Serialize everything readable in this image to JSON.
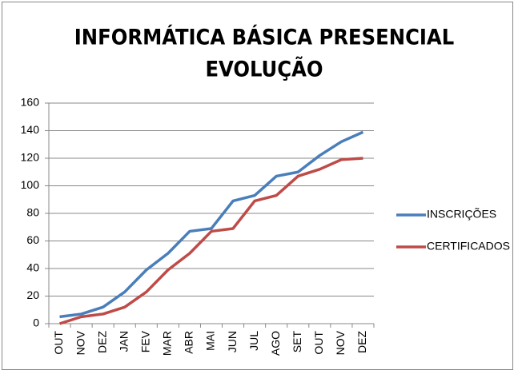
{
  "chart_data": {
    "type": "line",
    "title": [
      "INFORMÁTICA BÁSICA PRESENCIAL",
      "EVOLUÇÃO"
    ],
    "categories": [
      "OUT",
      "NOV",
      "DEZ",
      "JAN",
      "FEV",
      "MAR",
      "ABR",
      "MAI",
      "JUN",
      "JUL",
      "AGO",
      "SET",
      "OUT",
      "NOV",
      "DEZ"
    ],
    "series": [
      {
        "name": "INSCRIÇÕES",
        "color": "#4a7ebb",
        "values": [
          5,
          7,
          12,
          23,
          39,
          51,
          67,
          69,
          89,
          93,
          107,
          110,
          122,
          132,
          139
        ]
      },
      {
        "name": "CERTIFICADOS",
        "color": "#be4b48",
        "values": [
          0,
          5,
          7,
          12,
          23,
          39,
          51,
          67,
          69,
          89,
          93,
          107,
          112,
          119,
          120
        ]
      }
    ],
    "ylim": [
      0,
      160
    ],
    "yticks": [
      0,
      20,
      40,
      60,
      80,
      100,
      120,
      140,
      160
    ],
    "grid": true,
    "legend": "right"
  }
}
